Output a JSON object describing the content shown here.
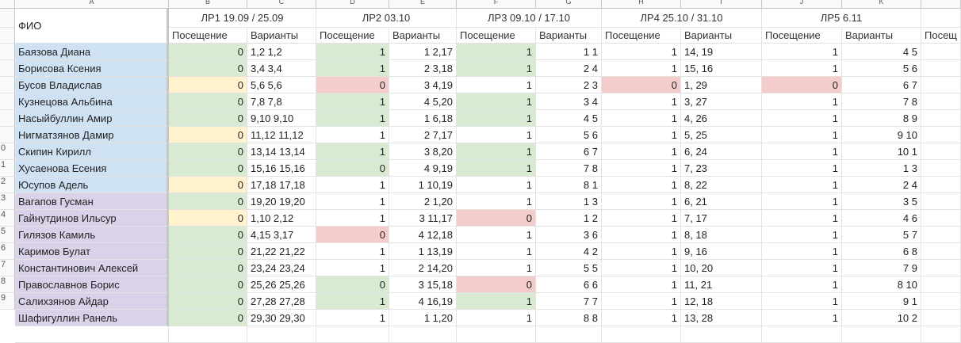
{
  "columns": [
    "A",
    "B",
    "C",
    "D",
    "E",
    "F",
    "G",
    "H",
    "I",
    "J",
    "K",
    ""
  ],
  "header": {
    "fio": "ФИО",
    "groups": [
      "ЛР1 19.09 / 25.09",
      "ЛР2 03.10",
      "ЛР3 09.10 / 17.10",
      "ЛР4 25.10 / 31.10",
      "ЛР5 6.11"
    ],
    "attendance_label": "Посещение",
    "variants_label": "Варианты",
    "attendance_cut": "Посещ"
  },
  "row_numbers": [
    "",
    "",
    "",
    "",
    "",
    "",
    "",
    "",
    "0",
    "1",
    "2",
    "3",
    "4",
    "5",
    "6",
    "7",
    "8",
    "9"
  ],
  "colors": {
    "blue": "#cfe2f3",
    "purple": "#d9d2e9",
    "green": "#d9ead3",
    "yellow": "#fff2cc",
    "red": "#f4cccc",
    "white": "#ffffff"
  },
  "rows": [
    {
      "name": "Баязова Диана",
      "group": "blue",
      "v": [
        [
          "0",
          "green"
        ],
        "1,2 1,2",
        [
          "1",
          "green"
        ],
        "1 2,17",
        [
          "1",
          "green"
        ],
        "1 1",
        [
          "1",
          "white"
        ],
        "14, 19",
        [
          "1",
          "white"
        ],
        "4 5"
      ]
    },
    {
      "name": "Борисова Ксения",
      "group": "blue",
      "v": [
        [
          "0",
          "green"
        ],
        "3,4 3,4",
        [
          "1",
          "green"
        ],
        "2 3,18",
        [
          "1",
          "green"
        ],
        "2 4",
        [
          "1",
          "white"
        ],
        "15, 16",
        [
          "1",
          "white"
        ],
        "5 6"
      ]
    },
    {
      "name": "Бусов Владислав",
      "group": "blue",
      "v": [
        [
          "0",
          "yellow"
        ],
        "5,6 5,6",
        [
          "0",
          "red"
        ],
        "3 4,19",
        [
          "1",
          "white"
        ],
        "2 3",
        [
          "0",
          "red"
        ],
        "1, 29",
        [
          "0",
          "red"
        ],
        "6 7"
      ]
    },
    {
      "name": "Кузнецова Альбина",
      "group": "blue",
      "v": [
        [
          "0",
          "green"
        ],
        "7,8 7,8",
        [
          "1",
          "green"
        ],
        "4 5,20",
        [
          "1",
          "green"
        ],
        "3 4",
        [
          "1",
          "white"
        ],
        "3, 27",
        [
          "1",
          "white"
        ],
        "7 8"
      ]
    },
    {
      "name": "Насыйбуллин Амир",
      "group": "blue",
      "v": [
        [
          "0",
          "green"
        ],
        "9,10 9,10",
        [
          "1",
          "green"
        ],
        "1 6,18",
        [
          "1",
          "green"
        ],
        "4 5",
        [
          "1",
          "white"
        ],
        "4, 26",
        [
          "1",
          "white"
        ],
        "8 9"
      ]
    },
    {
      "name": "Нигматзянов Дамир",
      "group": "blue",
      "v": [
        [
          "0",
          "yellow"
        ],
        "11,12 11,12",
        [
          "1",
          "white"
        ],
        "2 7,17",
        [
          "1",
          "white"
        ],
        "5 6",
        [
          "1",
          "white"
        ],
        "5, 25",
        [
          "1",
          "white"
        ],
        "9 10"
      ]
    },
    {
      "name": "Скипин Кирилл",
      "group": "blue",
      "v": [
        [
          "0",
          "green"
        ],
        "13,14 13,14",
        [
          "1",
          "green"
        ],
        "3 8,20",
        [
          "1",
          "green"
        ],
        "6 7",
        [
          "1",
          "white"
        ],
        "6, 24",
        [
          "1",
          "white"
        ],
        "10 1"
      ]
    },
    {
      "name": "Хусаенова Есения",
      "group": "blue",
      "v": [
        [
          "0",
          "green"
        ],
        "15,16 15,16",
        [
          "0",
          "green"
        ],
        "4 9,19",
        [
          "1",
          "green"
        ],
        "7 8",
        [
          "1",
          "white"
        ],
        "7, 23",
        [
          "1",
          "white"
        ],
        "1 3"
      ]
    },
    {
      "name": "Юсупов Адель",
      "group": "blue",
      "v": [
        [
          "0",
          "yellow"
        ],
        "17,18 17,18",
        [
          "1",
          "white"
        ],
        "1 10,19",
        [
          "1",
          "white"
        ],
        "8 1",
        [
          "1",
          "white"
        ],
        "8, 22",
        [
          "1",
          "white"
        ],
        "2 4"
      ]
    },
    {
      "name": "Вагапов Гусман",
      "group": "purple",
      "v": [
        [
          "0",
          "green"
        ],
        "19,20 19,20",
        [
          "1",
          "white"
        ],
        "2 1,20",
        [
          "1",
          "white"
        ],
        "1 3",
        [
          "1",
          "white"
        ],
        "6, 21",
        [
          "1",
          "white"
        ],
        "3 5"
      ]
    },
    {
      "name": "Гайнутдинов Ильсур",
      "group": "purple",
      "v": [
        [
          "0",
          "yellow"
        ],
        "1,10 2,12",
        [
          "1",
          "white"
        ],
        "3 11,17",
        [
          "0",
          "red"
        ],
        "1 2",
        [
          "1",
          "white"
        ],
        "7, 17",
        [
          "1",
          "white"
        ],
        "4 6"
      ]
    },
    {
      "name": "Гилязов Камиль",
      "group": "purple",
      "v": [
        [
          "0",
          "green"
        ],
        "4,15 3,17",
        [
          "0",
          "red"
        ],
        "4 12,18",
        [
          "1",
          "white"
        ],
        "3 6",
        [
          "1",
          "white"
        ],
        "8, 18",
        [
          "1",
          "white"
        ],
        "5 7"
      ]
    },
    {
      "name": "Каримов Булат",
      "group": "purple",
      "v": [
        [
          "0",
          "green"
        ],
        "21,22 21,22",
        [
          "1",
          "white"
        ],
        "1 13,19",
        [
          "1",
          "white"
        ],
        "4 2",
        [
          "1",
          "white"
        ],
        "9, 16",
        [
          "1",
          "white"
        ],
        "6 8"
      ]
    },
    {
      "name": "Константинович Алексей",
      "group": "purple",
      "v": [
        [
          "0",
          "green"
        ],
        "23,24 23,24",
        [
          "1",
          "white"
        ],
        "2 14,20",
        [
          "1",
          "white"
        ],
        "5 5",
        [
          "1",
          "white"
        ],
        "10, 20",
        [
          "1",
          "white"
        ],
        "7 9"
      ]
    },
    {
      "name": "Православнов Борис",
      "group": "purple",
      "v": [
        [
          "0",
          "green"
        ],
        "25,26 25,26",
        [
          "0",
          "green"
        ],
        "3 15,18",
        [
          "0",
          "red"
        ],
        "6 6",
        [
          "1",
          "white"
        ],
        "11, 21",
        [
          "1",
          "white"
        ],
        "8 10"
      ]
    },
    {
      "name": "Салихзянов Айдар",
      "group": "purple",
      "v": [
        [
          "0",
          "green"
        ],
        "27,28 27,28",
        [
          "1",
          "green"
        ],
        "4 16,19",
        [
          "1",
          "green"
        ],
        "7 7",
        [
          "1",
          "white"
        ],
        "12, 18",
        [
          "1",
          "white"
        ],
        "9 1"
      ]
    },
    {
      "name": "Шафигуллин Ранель",
      "group": "purple",
      "v": [
        [
          "0",
          "green"
        ],
        "29,30 29,30",
        [
          "1",
          "white"
        ],
        "1 1,20",
        [
          "1",
          "white"
        ],
        "8 8",
        [
          "1",
          "white"
        ],
        "13, 28",
        [
          "1",
          "white"
        ],
        "10 2"
      ]
    }
  ]
}
